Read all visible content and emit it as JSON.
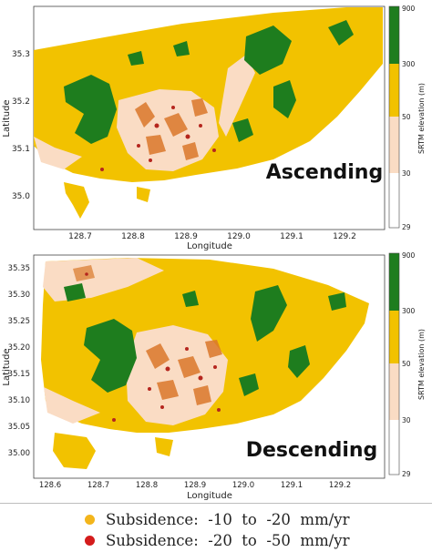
{
  "panels": [
    {
      "name": "ascending",
      "title": "Ascending",
      "xlabel": "Longitude",
      "ylabel": "Latitude",
      "x_ticks": [
        "128.7",
        "128.8",
        "128.9",
        "129.0",
        "129.1",
        "129.2"
      ],
      "y_ticks": [
        "35.3",
        "35.2",
        "35.1",
        "35.0"
      ]
    },
    {
      "name": "descending",
      "title": "Descending",
      "xlabel": "Longitude",
      "ylabel": "Latitude",
      "x_ticks": [
        "128.6",
        "128.7",
        "128.8",
        "128.9",
        "129.0",
        "129.1",
        "129.2"
      ],
      "y_ticks": [
        "35.35",
        "35.30",
        "35.25",
        "35.20",
        "35.15",
        "35.10",
        "35.05",
        "35.00"
      ]
    }
  ],
  "colorbar": {
    "label": "SRTM elevation (m)",
    "ticks": [
      "900",
      "300",
      "50",
      "30",
      "29"
    ],
    "colors": {
      "high": "#1e7d1e",
      "mid": "#f2c200",
      "low": "#fadcc4",
      "base": "#ffffff"
    }
  },
  "legend": {
    "items": [
      {
        "label": "Subsidence:  -10  to  -20  mm/yr",
        "color": "#f3b51b"
      },
      {
        "label": "Subsidence:  -20  to  -50  mm/yr",
        "color": "#d41c1c"
      }
    ]
  },
  "colors": {
    "forest": "#1e7d1e",
    "land": "#f2c200",
    "lowland": "#fadcc4",
    "urban_orange": "#d9772a",
    "urban_red": "#b5261e"
  }
}
